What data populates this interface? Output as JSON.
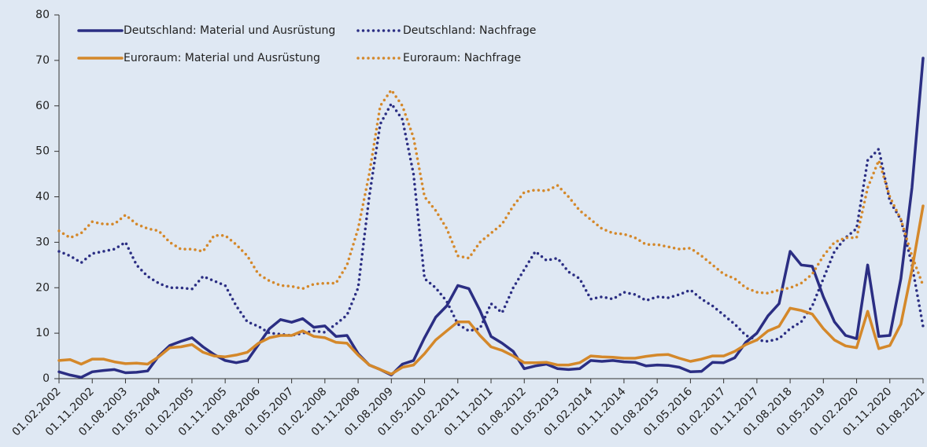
{
  "chart_data": {
    "type": "line",
    "categories": [
      "01.02.2002",
      null,
      null,
      "01.11.2002",
      null,
      null,
      "01.08.2003",
      null,
      null,
      "01.05.2004",
      null,
      null,
      "01.02.2005",
      null,
      null,
      "01.11.2005",
      null,
      null,
      "01.08.2006",
      null,
      null,
      "01.05.2007",
      null,
      null,
      "01.02.2008",
      null,
      null,
      "01.11.2008",
      null,
      null,
      "01.08.2009",
      null,
      null,
      "01.05.2010",
      null,
      null,
      "01.02.2011",
      null,
      null,
      "01.11.2011",
      null,
      null,
      "01.08.2012",
      null,
      null,
      "01.05.2013",
      null,
      null,
      "01.02.2014",
      null,
      null,
      "01.11.2014",
      null,
      null,
      "01.08.2015",
      null,
      null,
      "01.05.2016",
      null,
      null,
      "01.02.2017",
      null,
      null,
      "01.11.2017",
      null,
      null,
      "01.08.2018",
      null,
      null,
      "01.05.2019",
      null,
      null,
      "01.02.2020",
      null,
      null,
      "01.11.2020",
      null,
      null,
      "01.08.2021"
    ],
    "series": [
      {
        "name": "Deutschland: Material und Ausrüstung",
        "color": "#2b2e83",
        "style": "solid",
        "values": [
          1.5,
          0.8,
          0.3,
          1.5,
          1.8,
          2,
          1.3,
          1.4,
          1.7,
          5,
          7.3,
          8.2,
          9,
          7,
          5.3,
          4,
          3.5,
          4,
          7.5,
          11,
          13,
          12.4,
          13.2,
          11.3,
          11.6,
          9.3,
          9.5,
          5.5,
          3,
          2,
          0.8,
          3.2,
          4,
          9,
          13.5,
          16,
          20.5,
          19.8,
          15,
          9.3,
          7.8,
          6,
          2.2,
          2.8,
          3.2,
          2.2,
          2,
          2.2,
          4,
          3.8,
          4,
          3.7,
          3.6,
          2.8,
          3,
          2.9,
          2.5,
          1.5,
          1.6,
          3.6,
          3.5,
          4.6,
          8,
          10,
          13.8,
          16.5,
          28,
          25,
          24.7,
          18,
          12.5,
          9.5,
          8.8,
          25,
          9.3,
          9.5,
          22,
          42,
          70.5
        ]
      },
      {
        "name": "Deutschland: Nachfrage",
        "color": "#2b2e83",
        "style": "dotted",
        "values": [
          28,
          27,
          25.5,
          27.5,
          28,
          28.5,
          30,
          25,
          22.5,
          21,
          20,
          20,
          19.7,
          22.5,
          21.5,
          20.5,
          16,
          12.5,
          11.5,
          10,
          9.8,
          9.5,
          10,
          10.5,
          10.2,
          12,
          14,
          20,
          40,
          56,
          60.5,
          57,
          45,
          22,
          20,
          17,
          12,
          10.5,
          11,
          16.5,
          14.5,
          20,
          24,
          28,
          26,
          26.5,
          23.5,
          22,
          17.5,
          18,
          17.5,
          19,
          18.5,
          17.2,
          18,
          17.8,
          18.5,
          19.5,
          17.5,
          16,
          14,
          12,
          9.5,
          8.5,
          8.2,
          8.8,
          11,
          12.5,
          16,
          22,
          28,
          31,
          33,
          48,
          50.5,
          39,
          35,
          25,
          11.5
        ]
      },
      {
        "name": "Euroraum: Material und Ausrüstung",
        "color": "#d4882a",
        "style": "solid",
        "values": [
          4,
          4.2,
          3.2,
          4.3,
          4.3,
          3.7,
          3.3,
          3.4,
          3.2,
          4.8,
          6.8,
          7,
          7.5,
          5.8,
          5,
          4.8,
          5.2,
          5.8,
          7.8,
          9,
          9.5,
          9.5,
          10.5,
          9.3,
          9,
          8,
          7.8,
          5.2,
          3,
          2,
          1,
          2.5,
          3,
          5.5,
          8.5,
          10.5,
          12.5,
          12.5,
          9.5,
          7,
          6.2,
          5,
          3.5,
          3.5,
          3.6,
          3,
          3,
          3.5,
          5,
          4.8,
          4.7,
          4.5,
          4.5,
          4.9,
          5.2,
          5.3,
          4.5,
          3.8,
          4.3,
          5,
          5,
          6,
          7.5,
          8.5,
          10.5,
          11.5,
          15.5,
          15,
          14.2,
          11,
          8.5,
          7.2,
          6.8,
          14.8,
          6.6,
          7.3,
          12,
          24,
          38
        ]
      },
      {
        "name": "Euroraum: Nachfrage",
        "color": "#d4882a",
        "style": "dotted",
        "values": [
          32.5,
          31,
          32,
          34.5,
          34,
          34,
          36,
          34,
          33,
          32.5,
          30,
          28.5,
          28.5,
          28,
          31.5,
          31.5,
          29.5,
          27,
          23,
          21.5,
          20.5,
          20.3,
          19.8,
          20.8,
          21,
          21,
          25,
          33,
          45,
          60,
          63.5,
          60,
          53,
          40,
          37,
          33,
          27,
          26.5,
          30,
          32,
          34,
          38,
          41,
          41.5,
          41.3,
          42.5,
          40,
          37,
          35,
          33,
          32,
          31.8,
          31,
          29.5,
          29.5,
          29,
          28.5,
          28.7,
          27,
          25,
          23,
          22,
          20,
          19,
          18.8,
          19.5,
          20,
          21,
          23,
          27,
          30,
          31,
          31,
          42,
          48,
          40,
          35,
          27,
          20.5
        ]
      }
    ],
    "ylim": [
      0,
      80
    ],
    "yticks": [
      0,
      10,
      20,
      30,
      40,
      50,
      60,
      70,
      80
    ],
    "legend": "top"
  }
}
